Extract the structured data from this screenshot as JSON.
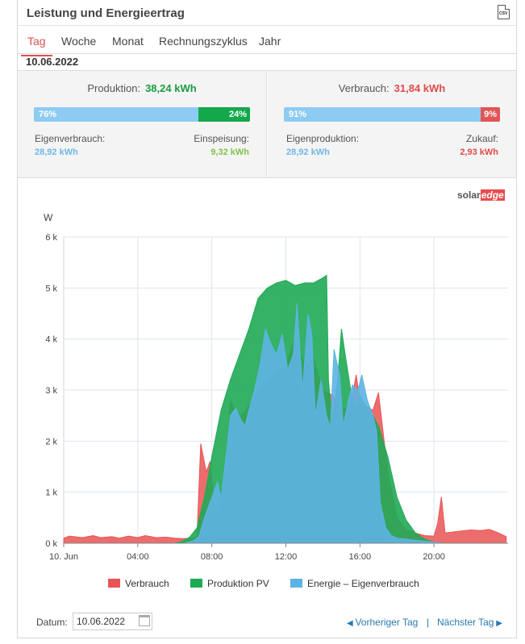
{
  "header": {
    "title": "Leistung und Energieertrag",
    "csv_label": "CSV",
    "csv_icon": "csv-file-icon"
  },
  "tabs": [
    {
      "label": "Tag",
      "active": true
    },
    {
      "label": "Woche",
      "active": false
    },
    {
      "label": "Monat",
      "active": false
    },
    {
      "label": "Rechnungszyklus",
      "active": false
    },
    {
      "label": "Jahr",
      "active": false
    }
  ],
  "selected_date": "10.06.2022",
  "production": {
    "label": "Produktion:",
    "value": "38,24 kWh",
    "color": "#1a9b43",
    "bar": [
      {
        "text": "76%",
        "fraction": 0.76,
        "color": "#8ecbf3"
      },
      {
        "text": "24%",
        "fraction": 0.24,
        "color": "#13a84b"
      }
    ],
    "left_label": "Eigenverbrauch:",
    "left_value": "28,92 kWh",
    "left_color": "#6fb6e8",
    "right_label": "Einspeisung:",
    "right_value": "9,32 kWh",
    "right_color": "#7cc34a"
  },
  "consumption": {
    "label": "Verbrauch:",
    "value": "31,84 kWh",
    "color": "#e04a4a",
    "bar": [
      {
        "text": "91%",
        "fraction": 0.91,
        "color": "#8ecbf3"
      },
      {
        "text": "9%",
        "fraction": 0.09,
        "color": "#e25555"
      }
    ],
    "left_label": "Eigenproduktion:",
    "left_value": "28,92 kWh",
    "left_color": "#6fb6e8",
    "right_label": "Zukauf:",
    "right_value": "2,93 kWh",
    "right_color": "#e04a4a"
  },
  "logo": {
    "part1": "solar",
    "part2": "edge"
  },
  "chart_data": {
    "type": "area",
    "ylabel": "W",
    "ylim": [
      0,
      6000
    ],
    "yticks": [
      0,
      1000,
      2000,
      3000,
      4000,
      5000,
      6000
    ],
    "ytick_labels": [
      "0 k",
      "1 k",
      "2 k",
      "3 k",
      "4 k",
      "5 k",
      "6 k"
    ],
    "xlim": [
      0,
      24
    ],
    "xticks": [
      0,
      4,
      8,
      12,
      16,
      20
    ],
    "xtick_labels": [
      "10. Jun",
      "04:00",
      "08:00",
      "12:00",
      "16:00",
      "20:00"
    ],
    "grid": true,
    "legend_position": "bottom",
    "series": [
      {
        "name": "Verbrauch",
        "color": "#e95454",
        "x": [
          0,
          0.3,
          1,
          1.6,
          2,
          2.6,
          3,
          3.5,
          4,
          4.4,
          5,
          5.5,
          6,
          6.5,
          7,
          7.2,
          7.4,
          7.7,
          7.9,
          8.2,
          8.5,
          8.8,
          9,
          9.3,
          9.6,
          10,
          10.5,
          11,
          11.5,
          12,
          12.5,
          13,
          13.5,
          14,
          14.5,
          15,
          15.5,
          15.8,
          16,
          16.3,
          16.7,
          17,
          17.5,
          18,
          18.5,
          19,
          19.5,
          20,
          20.2,
          20.4,
          20.6,
          21,
          21.5,
          22,
          22.5,
          23,
          23.5,
          23.9
        ],
        "y": [
          100,
          140,
          110,
          150,
          110,
          130,
          100,
          140,
          110,
          150,
          110,
          120,
          100,
          90,
          100,
          140,
          1950,
          1400,
          1600,
          500,
          1000,
          1500,
          2780,
          2600,
          2500,
          2700,
          3000,
          3200,
          3300,
          3500,
          4000,
          3500,
          3600,
          3000,
          2900,
          2600,
          2700,
          3300,
          2800,
          2700,
          2600,
          2950,
          1400,
          500,
          260,
          200,
          150,
          140,
          400,
          910,
          200,
          220,
          240,
          260,
          250,
          270,
          200,
          130
        ]
      },
      {
        "name": "Produktion PV",
        "color": "#1faa55",
        "x": [
          6,
          6.4,
          6.8,
          7.2,
          7.6,
          8,
          8.5,
          9,
          9.5,
          10,
          10.5,
          11,
          11.5,
          12,
          12.5,
          13,
          13.5,
          14,
          14.2,
          14.3,
          14.5,
          14.8,
          15,
          15.2,
          15.5,
          15.8,
          16,
          16.3,
          16.7,
          17,
          17.5,
          18,
          18.5,
          19,
          19.5,
          20,
          20.5
        ],
        "y": [
          0,
          40,
          120,
          300,
          900,
          1700,
          2600,
          3200,
          3700,
          4200,
          4800,
          5000,
          5100,
          5150,
          5050,
          5100,
          5100,
          5200,
          5250,
          3200,
          2350,
          3200,
          4200,
          3700,
          3000,
          2600,
          2900,
          2700,
          2500,
          2300,
          1700,
          900,
          450,
          200,
          80,
          20,
          0
        ]
      },
      {
        "name": "Energie – Eigenverbrauch",
        "color": "#5db4e3",
        "x": [
          6.5,
          7,
          7.3,
          7.6,
          8,
          8.3,
          8.5,
          8.8,
          9,
          9.3,
          9.6,
          9.8,
          10,
          10.3,
          10.6,
          10.9,
          11.2,
          11.5,
          11.8,
          12.1,
          12.4,
          12.6,
          12.9,
          13.2,
          13.4,
          13.6,
          13.9,
          14.2,
          14.4,
          14.6,
          14.9,
          15.1,
          15.4,
          15.6,
          15.9,
          16.1,
          16.4,
          16.7,
          16.9,
          17.1,
          17.4,
          17.7,
          18,
          18.5,
          19,
          19.5,
          20,
          20.5
        ],
        "y": [
          0,
          50,
          130,
          500,
          900,
          1200,
          900,
          1800,
          2500,
          2650,
          2400,
          2300,
          2600,
          3000,
          3500,
          4200,
          3900,
          3700,
          4100,
          3400,
          3700,
          4700,
          3000,
          4500,
          4100,
          2500,
          3200,
          2500,
          2250,
          3800,
          3300,
          2300,
          2850,
          3100,
          3000,
          3300,
          2800,
          2500,
          2200,
          800,
          300,
          150,
          100,
          80,
          60,
          40,
          20,
          0
        ]
      }
    ]
  },
  "footer": {
    "date_label": "Datum:",
    "date_value": "10.06.2022",
    "prev_label": "Vorheriger Tag",
    "separator": "|",
    "next_label": "Nächster Tag"
  }
}
